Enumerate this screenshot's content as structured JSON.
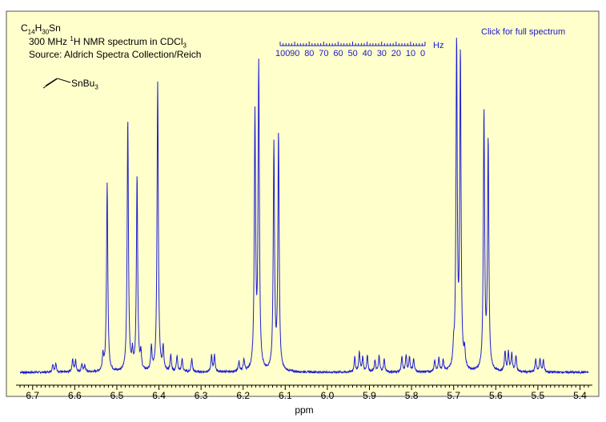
{
  "header": {
    "formula_main": "C",
    "formula_sub1": "14",
    "formula_h": "H",
    "formula_sub2": "30",
    "formula_end": "Sn",
    "line2_a": "300 MHz ",
    "line2_sup": "1",
    "line2_b": "H NMR spectrum in CDCl",
    "line2_sub": "3",
    "line3": "Source: Aldrich Spectra Collection/Reich",
    "structure_label": "SnBu",
    "structure_sub": "3",
    "full_spectrum_link": "Click for full spectrum"
  },
  "hz_scale": {
    "labels": [
      "100",
      "90",
      "80",
      "70",
      "60",
      "50",
      "40",
      "30",
      "20",
      "10",
      "0"
    ],
    "unit": "Hz"
  },
  "colors": {
    "background": "#ffffcc",
    "spectrum": "#1f1fd0",
    "link": "#1a1acc"
  },
  "chart_data": {
    "type": "line",
    "xlabel": "ppm",
    "xlim": [
      6.73,
      5.38
    ],
    "x_reversed": true,
    "x_ticks": [
      "6.7",
      "6.6",
      "6.5",
      "6.4",
      "6.3",
      "6.2",
      "6.1",
      "6.0",
      "5.9",
      "5.8",
      "5.7",
      "5.6",
      "5.5",
      "5.4"
    ],
    "ylabel": "",
    "y_axis_shown": false,
    "grid": false,
    "peaks": [
      {
        "ppm": 6.652,
        "height": 0.025
      },
      {
        "ppm": 6.645,
        "height": 0.025
      },
      {
        "ppm": 6.605,
        "height": 0.04
      },
      {
        "ppm": 6.598,
        "height": 0.035
      },
      {
        "ppm": 6.583,
        "height": 0.025
      },
      {
        "ppm": 6.576,
        "height": 0.02
      },
      {
        "ppm": 6.533,
        "height": 0.05
      },
      {
        "ppm": 6.523,
        "height": 0.58
      },
      {
        "ppm": 6.474,
        "height": 0.77
      },
      {
        "ppm": 6.463,
        "height": 0.05
      },
      {
        "ppm": 6.452,
        "height": 0.6
      },
      {
        "ppm": 6.443,
        "height": 0.05
      },
      {
        "ppm": 6.418,
        "height": 0.07
      },
      {
        "ppm": 6.403,
        "height": 0.89
      },
      {
        "ppm": 6.39,
        "height": 0.07
      },
      {
        "ppm": 6.372,
        "height": 0.05
      },
      {
        "ppm": 6.357,
        "height": 0.05
      },
      {
        "ppm": 6.345,
        "height": 0.04
      },
      {
        "ppm": 6.322,
        "height": 0.04
      },
      {
        "ppm": 6.275,
        "height": 0.05
      },
      {
        "ppm": 6.268,
        "height": 0.05
      },
      {
        "ppm": 6.21,
        "height": 0.03
      },
      {
        "ppm": 6.198,
        "height": 0.035
      },
      {
        "ppm": 6.172,
        "height": 0.78
      },
      {
        "ppm": 6.163,
        "height": 0.93
      },
      {
        "ppm": 6.127,
        "height": 0.69
      },
      {
        "ppm": 6.116,
        "height": 0.72
      },
      {
        "ppm": 5.935,
        "height": 0.045
      },
      {
        "ppm": 5.924,
        "height": 0.06
      },
      {
        "ppm": 5.916,
        "height": 0.045
      },
      {
        "ppm": 5.905,
        "height": 0.05
      },
      {
        "ppm": 5.887,
        "height": 0.035
      },
      {
        "ppm": 5.877,
        "height": 0.05
      },
      {
        "ppm": 5.865,
        "height": 0.04
      },
      {
        "ppm": 5.823,
        "height": 0.045
      },
      {
        "ppm": 5.813,
        "height": 0.05
      },
      {
        "ppm": 5.805,
        "height": 0.045
      },
      {
        "ppm": 5.795,
        "height": 0.04
      },
      {
        "ppm": 5.745,
        "height": 0.035
      },
      {
        "ppm": 5.735,
        "height": 0.04
      },
      {
        "ppm": 5.725,
        "height": 0.035
      },
      {
        "ppm": 5.7,
        "height": 0.05
      },
      {
        "ppm": 5.693,
        "height": 1.0
      },
      {
        "ppm": 5.684,
        "height": 0.96
      },
      {
        "ppm": 5.674,
        "height": 0.05
      },
      {
        "ppm": 5.628,
        "height": 0.79
      },
      {
        "ppm": 5.618,
        "height": 0.7
      },
      {
        "ppm": 5.578,
        "height": 0.06
      },
      {
        "ppm": 5.57,
        "height": 0.06
      },
      {
        "ppm": 5.562,
        "height": 0.055
      },
      {
        "ppm": 5.552,
        "height": 0.05
      },
      {
        "ppm": 5.505,
        "height": 0.04
      },
      {
        "ppm": 5.495,
        "height": 0.04
      },
      {
        "ppm": 5.487,
        "height": 0.035
      }
    ]
  }
}
